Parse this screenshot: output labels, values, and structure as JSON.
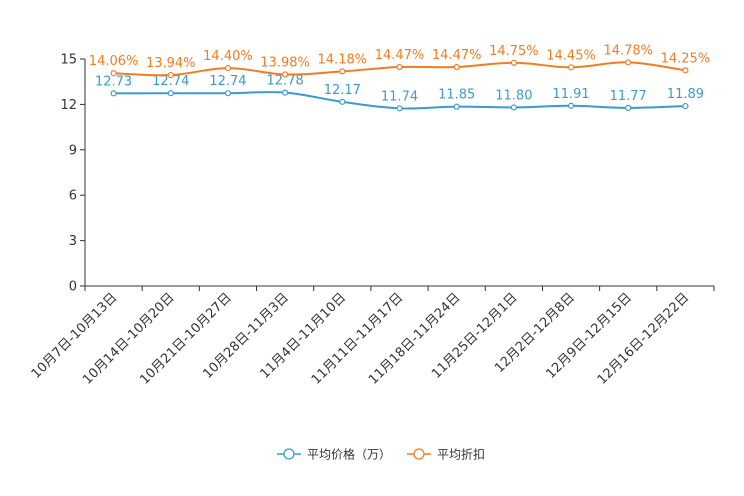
{
  "chart_data": {
    "type": "line",
    "title": "",
    "xlabel": "",
    "ylabel": "",
    "ylim": [
      0,
      15
    ],
    "yticks": [
      0,
      3,
      6,
      9,
      12,
      15
    ],
    "ytick_labels": [
      "0",
      "3",
      "6",
      "9",
      "12",
      "15"
    ],
    "grid": false,
    "legend_position": "bottom-center",
    "categories": [
      "10月7日-10月13日",
      "10月14日-10月20日",
      "10月21日-10月27日",
      "10月28日-11月3日",
      "11月4日-11月10日",
      "11月11日-11月17日",
      "11月18日-11月24日",
      "11月25日-12月1日",
      "12月2日-12月8日",
      "12月9日-12月15日",
      "12月16日-12月22日"
    ],
    "series": [
      {
        "name": "平均价格（万）",
        "color": "#3a9bd0",
        "values": [
          12.73,
          12.74,
          12.74,
          12.78,
          12.17,
          11.74,
          11.85,
          11.8,
          11.91,
          11.77,
          11.89
        ],
        "labels": [
          "12.73",
          "12.74",
          "12.74",
          "12.78",
          "12.17",
          "11.74",
          "11.85",
          "11.80",
          "11.91",
          "11.77",
          "11.89"
        ]
      },
      {
        "name": "平均折扣",
        "color": "#f47c20",
        "values": [
          14.06,
          13.94,
          14.4,
          13.98,
          14.18,
          14.47,
          14.47,
          14.75,
          14.45,
          14.78,
          14.25
        ],
        "labels": [
          "14.06%",
          "13.94%",
          "14.40%",
          "13.98%",
          "14.18%",
          "14.47%",
          "14.47%",
          "14.75%",
          "14.45%",
          "14.78%",
          "14.25%"
        ]
      }
    ]
  }
}
